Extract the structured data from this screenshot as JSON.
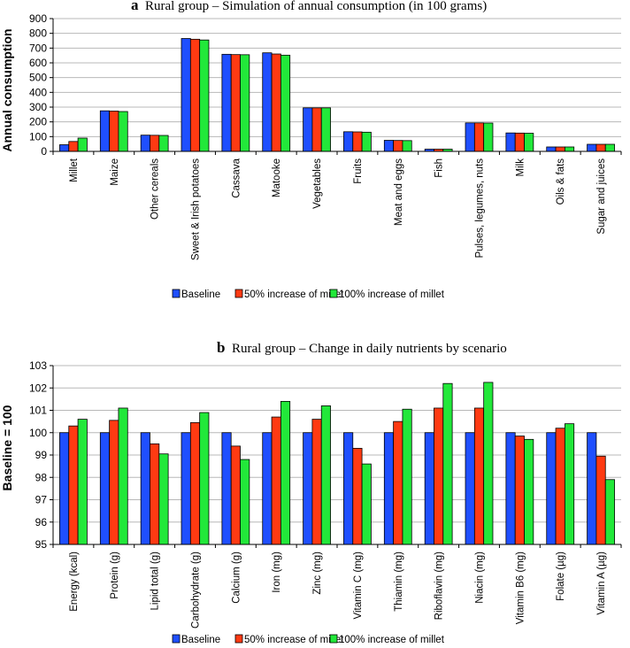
{
  "colors": {
    "baseline": "#1f4fff",
    "millet50": "#ff3a12",
    "millet100": "#22e83a",
    "outline": "#000000",
    "grid": "#b8b8b8"
  },
  "chart_data": [
    {
      "panel": "a",
      "type": "bar",
      "title": "Rural group – Simulation of annual consumption (in 100 grams)",
      "xlabel": "",
      "ylabel": "Annual consumption",
      "ylim": [
        0,
        900
      ],
      "yticks": [
        0,
        100,
        200,
        300,
        400,
        500,
        600,
        700,
        800,
        900
      ],
      "grid": true,
      "legend": "bottom",
      "categories": [
        "Millet",
        "Maize",
        "Other cereals",
        "Sweet & Irish potatoes",
        "Cassava",
        "Matooke",
        "Vegetables",
        "Fruits",
        "Meat and eggs",
        "Fish",
        "Pulses, legumes, nuts",
        "Milk",
        "Oils & fats",
        "Sugar and juices"
      ],
      "series": [
        {
          "name": "Baseline",
          "color": "#1f4fff",
          "values": [
            45,
            275,
            110,
            765,
            658,
            668,
            295,
            133,
            75,
            15,
            193,
            125,
            30,
            48
          ]
        },
        {
          "name": "50% increase of millet",
          "color": "#ff3a12",
          "values": [
            67,
            273,
            109,
            760,
            656,
            660,
            295,
            132,
            74,
            15,
            193,
            124,
            30,
            48
          ]
        },
        {
          "name": "100% increase of millet",
          "color": "#22e83a",
          "values": [
            90,
            270,
            108,
            755,
            655,
            652,
            295,
            130,
            73,
            15,
            192,
            123,
            30,
            48
          ]
        }
      ]
    },
    {
      "panel": "b",
      "type": "bar",
      "title": "Rural group – Change in daily nutrients by scenario",
      "xlabel": "",
      "ylabel": "Baseline = 100",
      "ylim": [
        95,
        103
      ],
      "yticks": [
        95,
        96,
        97,
        98,
        99,
        100,
        101,
        102,
        103
      ],
      "grid": true,
      "legend": "bottom",
      "categories": [
        "Energy (kcal)",
        "Protein (g)",
        "Lipid total (g)",
        "Carbohydrate (g)",
        "Calcium (g)",
        "Iron (mg)",
        "Zinc (mg)",
        "Vitamin C (mg)",
        "Thiamin (mg)",
        "Riboflavin (mg)",
        "Niacin (mg)",
        "Vitamin B6 (mg)",
        "Folate (µg)",
        "Vitamin A (µg)"
      ],
      "series": [
        {
          "name": "Baseline",
          "color": "#1f4fff",
          "values": [
            100,
            100,
            100,
            100,
            100,
            100,
            100,
            100,
            100,
            100,
            100,
            100,
            100,
            100
          ]
        },
        {
          "name": "50% increase of millet",
          "color": "#ff3a12",
          "values": [
            100.3,
            100.55,
            99.5,
            100.45,
            99.4,
            100.7,
            100.6,
            99.3,
            100.5,
            101.1,
            101.1,
            99.85,
            100.2,
            98.95
          ]
        },
        {
          "name": "100% increase of millet",
          "color": "#22e83a",
          "values": [
            100.6,
            101.1,
            99.05,
            100.9,
            98.8,
            101.4,
            101.2,
            98.6,
            101.05,
            102.2,
            102.25,
            99.7,
            100.4,
            97.9
          ]
        }
      ]
    }
  ]
}
